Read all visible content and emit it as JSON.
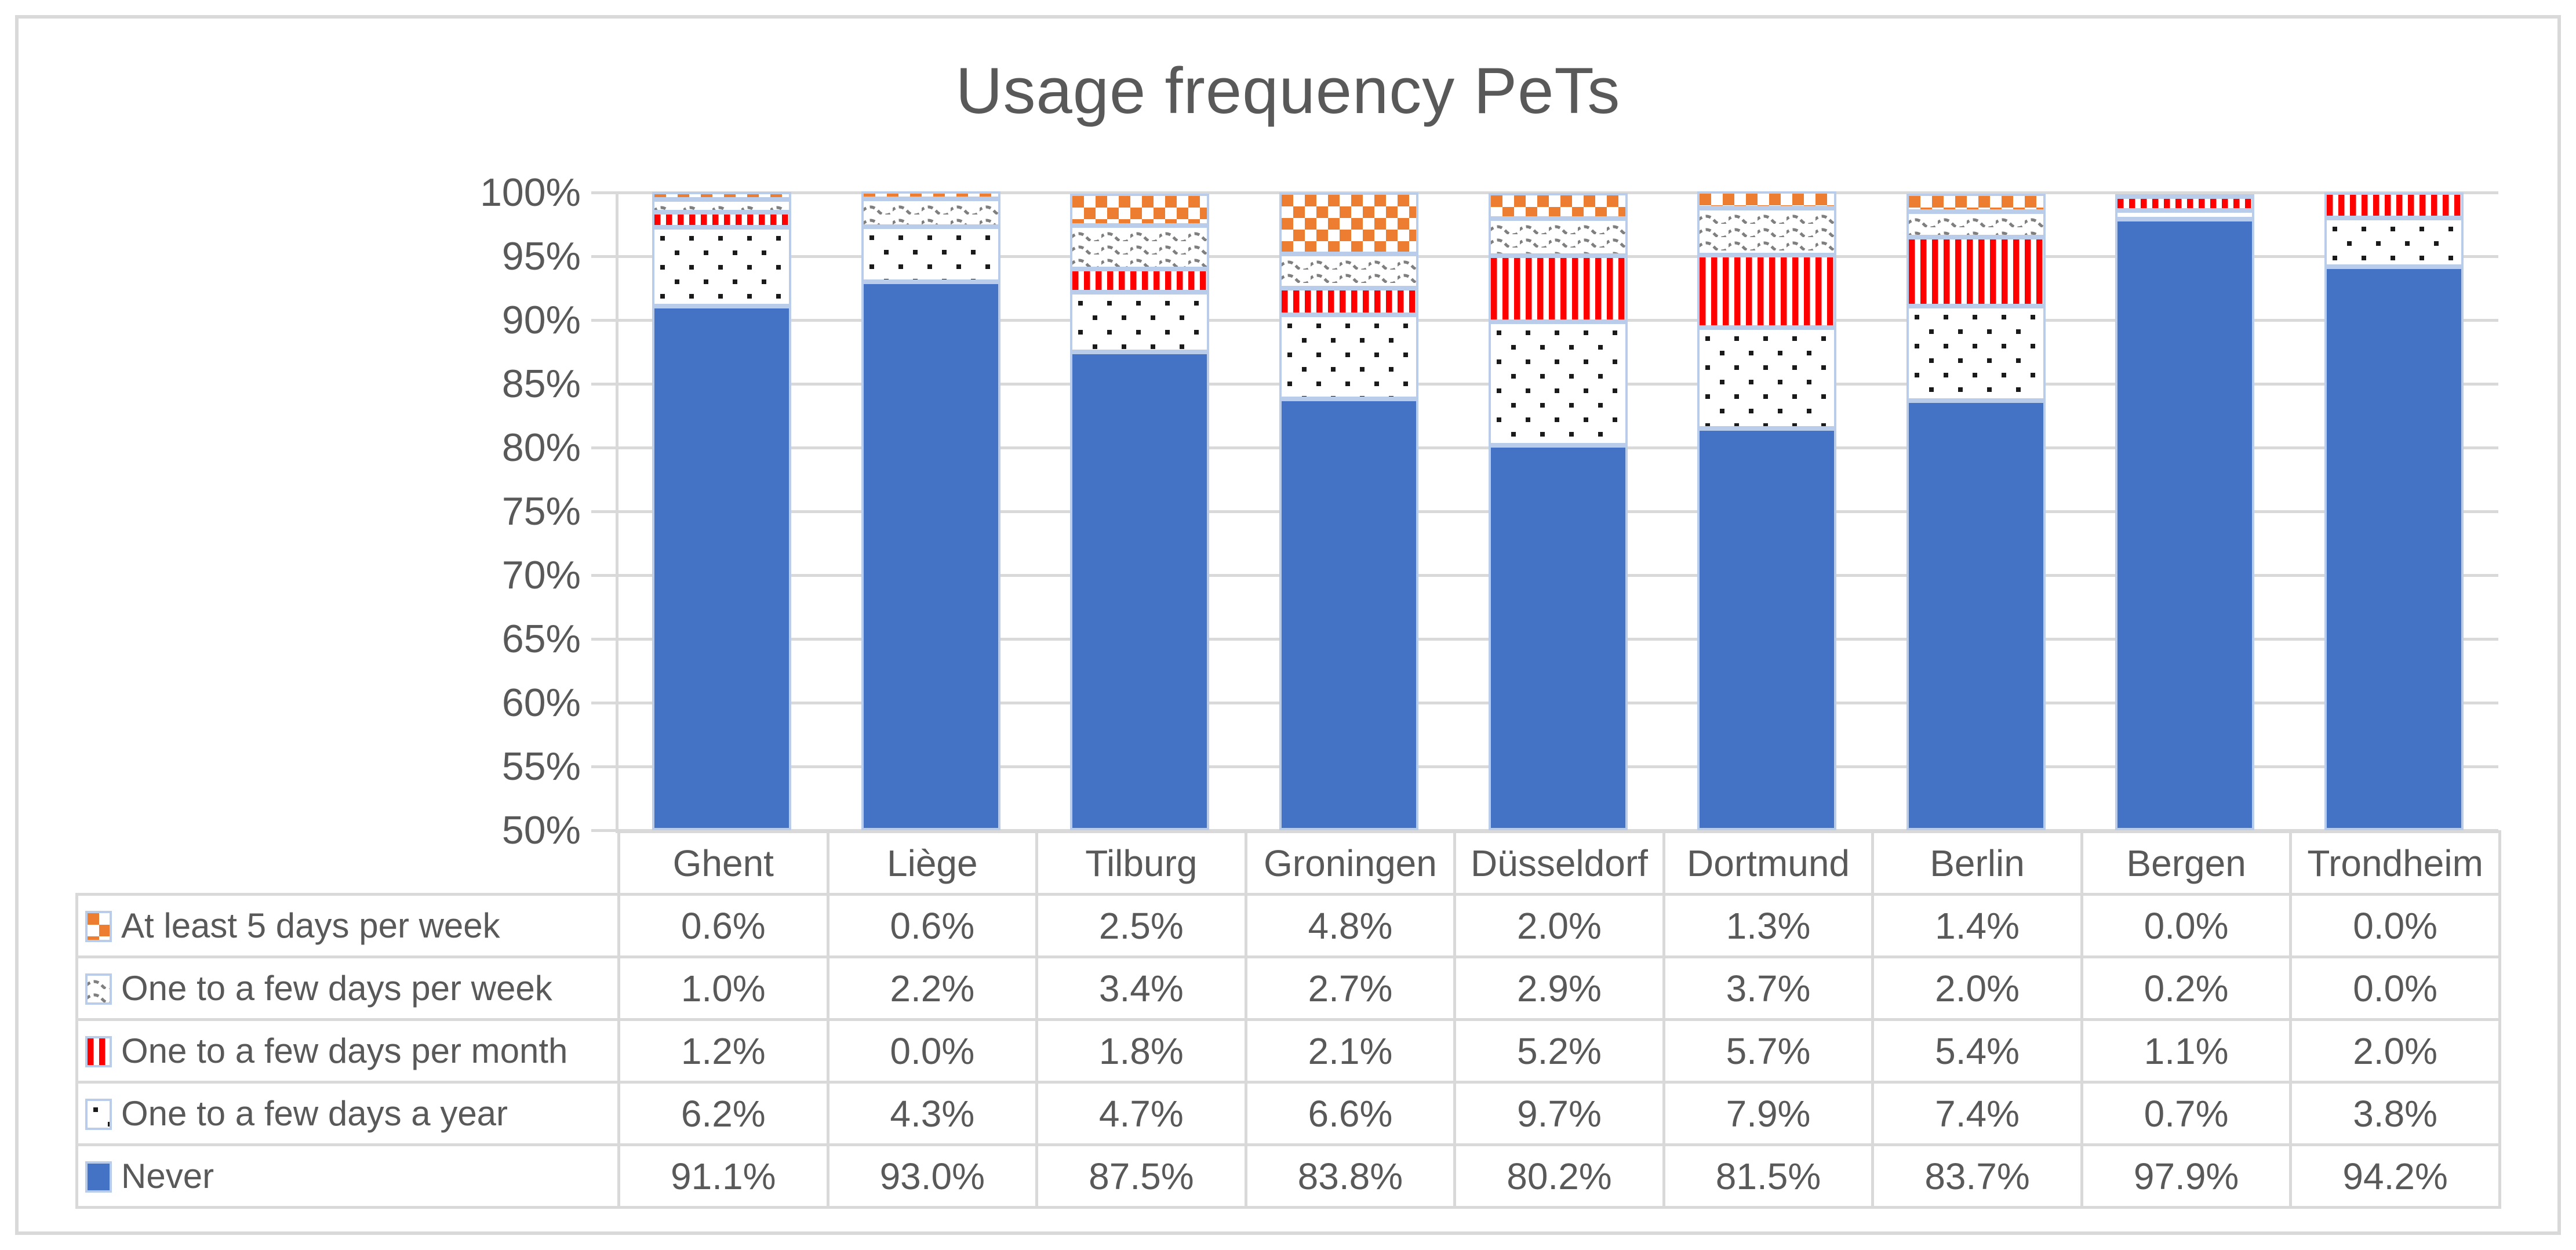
{
  "chart": {
    "title": "Usage frequency PeTs"
  },
  "chart_data": {
    "type": "bar",
    "stacked": true,
    "orientation": "vertical",
    "title": "Usage frequency PeTs",
    "xlabel": "",
    "ylabel": "",
    "ylim": [
      50,
      100
    ],
    "ytick_labels": [
      "100%",
      "95%",
      "90%",
      "85%",
      "80%",
      "75%",
      "70%",
      "65%",
      "60%",
      "55%",
      "50%"
    ],
    "grid": true,
    "legend_position": "data-table-left",
    "value_format": "percent-1dp",
    "categories": [
      "Ghent",
      "Liège",
      "Tilburg",
      "Groningen",
      "Düsseldorf",
      "Dortmund",
      "Berlin",
      "Bergen",
      "Trondheim"
    ],
    "series": [
      {
        "name": "At least 5 days per week",
        "pattern": "checker",
        "color": "#ED7D31",
        "values": [
          0.6,
          0.6,
          2.5,
          4.8,
          2.0,
          1.3,
          1.4,
          0.0,
          0.0
        ]
      },
      {
        "name": "One to a few days per week",
        "pattern": "wave",
        "color": "#7F7F7F",
        "values": [
          1.0,
          2.2,
          3.4,
          2.7,
          2.9,
          3.7,
          2.0,
          0.2,
          0.0
        ]
      },
      {
        "name": "One to a few days per month",
        "pattern": "stripes",
        "color": "#FF0000",
        "values": [
          1.2,
          0.0,
          1.8,
          2.1,
          5.2,
          5.7,
          5.4,
          1.1,
          2.0
        ]
      },
      {
        "name": "One to a few days a year",
        "pattern": "dots",
        "color": "#1A1A1A",
        "values": [
          6.2,
          4.3,
          4.7,
          6.6,
          9.7,
          7.9,
          7.4,
          0.7,
          3.8
        ]
      },
      {
        "name": "Never",
        "pattern": "solid",
        "color": "#4472C4",
        "values": [
          91.1,
          93.0,
          87.5,
          83.8,
          80.2,
          81.5,
          83.7,
          97.9,
          94.2
        ]
      }
    ]
  },
  "colors": {
    "series_blue": "#4472C4",
    "series_orange": "#ED7D31",
    "series_red": "#FF0000",
    "pattern_gray": "#7F7F7F",
    "segment_border": "#B9CCEA",
    "gridline": "#D9D9D9",
    "text": "#595959"
  }
}
